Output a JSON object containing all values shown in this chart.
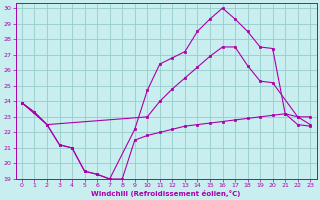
{
  "xlabel": "Windchill (Refroidissement éolien,°C)",
  "bg_color": "#c8eef0",
  "line_color": "#aa00aa",
  "grid_color": "#99cccc",
  "xlim": [
    -0.5,
    23.5
  ],
  "ylim": [
    19,
    30.3
  ],
  "yticks": [
    19,
    20,
    21,
    22,
    23,
    24,
    25,
    26,
    27,
    28,
    29,
    30
  ],
  "xticks": [
    0,
    1,
    2,
    3,
    4,
    5,
    6,
    7,
    8,
    9,
    10,
    11,
    12,
    13,
    14,
    15,
    16,
    17,
    18,
    19,
    20,
    21,
    22,
    23
  ],
  "line1_x": [
    0,
    1,
    2,
    3,
    4,
    5,
    6,
    7,
    8,
    9,
    10,
    11,
    12,
    13,
    14,
    15,
    16,
    17,
    18,
    19,
    20,
    21,
    22,
    23
  ],
  "line1_y": [
    23.9,
    23.3,
    22.5,
    21.2,
    21.0,
    19.5,
    19.3,
    19.0,
    19.0,
    21.5,
    21.8,
    22.0,
    22.2,
    22.4,
    22.5,
    22.6,
    22.7,
    22.8,
    22.9,
    23.0,
    23.1,
    23.2,
    22.5,
    22.4
  ],
  "line2_x": [
    0,
    1,
    2,
    3,
    4,
    5,
    6,
    7,
    9,
    10,
    11,
    12,
    13,
    14,
    15,
    16,
    17,
    18,
    19,
    20,
    21,
    22,
    23
  ],
  "line2_y": [
    23.9,
    23.3,
    22.5,
    21.2,
    21.0,
    19.5,
    19.3,
    19.0,
    22.2,
    24.7,
    26.4,
    26.8,
    27.2,
    28.5,
    29.3,
    30.0,
    29.3,
    28.5,
    27.5,
    27.4,
    23.2,
    23.0,
    23.0
  ],
  "line3_x": [
    0,
    2,
    10,
    11,
    12,
    13,
    14,
    15,
    16,
    17,
    18,
    19,
    20,
    22,
    23
  ],
  "line3_y": [
    23.9,
    22.5,
    23.0,
    24.0,
    24.8,
    25.5,
    26.2,
    26.9,
    27.5,
    27.5,
    26.3,
    25.3,
    25.2,
    23.0,
    22.5
  ]
}
